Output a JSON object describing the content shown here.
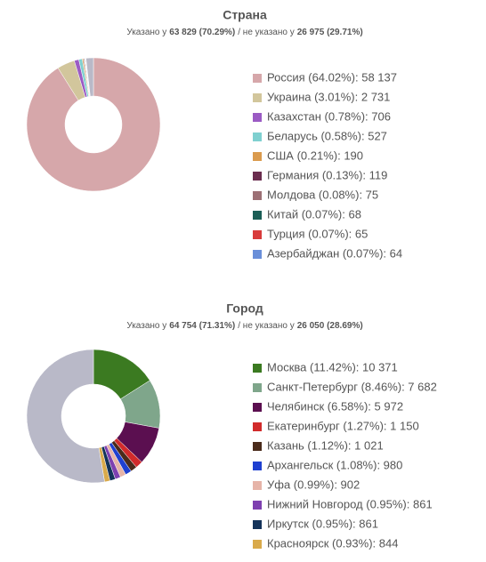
{
  "chart_data": [
    {
      "type": "donut",
      "title": "Страна",
      "specified_text": "Указано у",
      "specified": {
        "value": 63829,
        "label": "63 829 (70.29%)"
      },
      "not_specified_text": "/ не указано у",
      "not_specified": {
        "value": 26975,
        "label": "26 975 (29.71%)"
      },
      "categories": [
        "Россия (64.02%): 58 137",
        "Украина (3.01%): 2 731",
        "Казахстан (0.78%): 706",
        "Беларусь (0.58%): 527",
        "США (0.21%): 190",
        "Германия (0.13%): 119",
        "Молдова (0.08%): 75",
        "Китай (0.07%): 68",
        "Турция (0.07%): 65",
        "Азербайджан (0.07%): 64"
      ],
      "values": [
        58137,
        2731,
        706,
        527,
        190,
        119,
        75,
        68,
        65,
        64
      ],
      "colors": [
        "#d6a7aa",
        "#d2c69c",
        "#9b5bc4",
        "#7fd0d0",
        "#da9b4e",
        "#6b2d4f",
        "#9c7075",
        "#1b5e56",
        "#d83b3b",
        "#6a8fd9"
      ]
    },
    {
      "type": "donut",
      "title": "Город",
      "specified_text": "Указано у",
      "specified": {
        "value": 64754,
        "label": "64 754 (71.31%)"
      },
      "not_specified_text": "/ не указано у",
      "not_specified": {
        "value": 26050,
        "label": "26 050 (28.69%)"
      },
      "categories": [
        "Москва (11.42%): 10 371",
        "Санкт-Петербург (8.46%): 7 682",
        "Челябинск (6.58%): 5 972",
        "Екатеринбург (1.27%): 1 150",
        "Казань (1.12%): 1 021",
        "Архангельск (1.08%): 980",
        "Уфа (0.99%): 902",
        "Нижний Новгород (0.95%): 861",
        "Иркутск (0.95%): 861",
        "Красноярск (0.93%): 844"
      ],
      "values": [
        10371,
        7682,
        5972,
        1150,
        1021,
        980,
        902,
        861,
        861,
        844
      ],
      "colors": [
        "#3b7a21",
        "#7fa68b",
        "#5b0f50",
        "#d12b2b",
        "#4a2b1b",
        "#1f40d0",
        "#e6b4a8",
        "#7e40b0",
        "#14335a",
        "#d9aa4b"
      ]
    }
  ]
}
